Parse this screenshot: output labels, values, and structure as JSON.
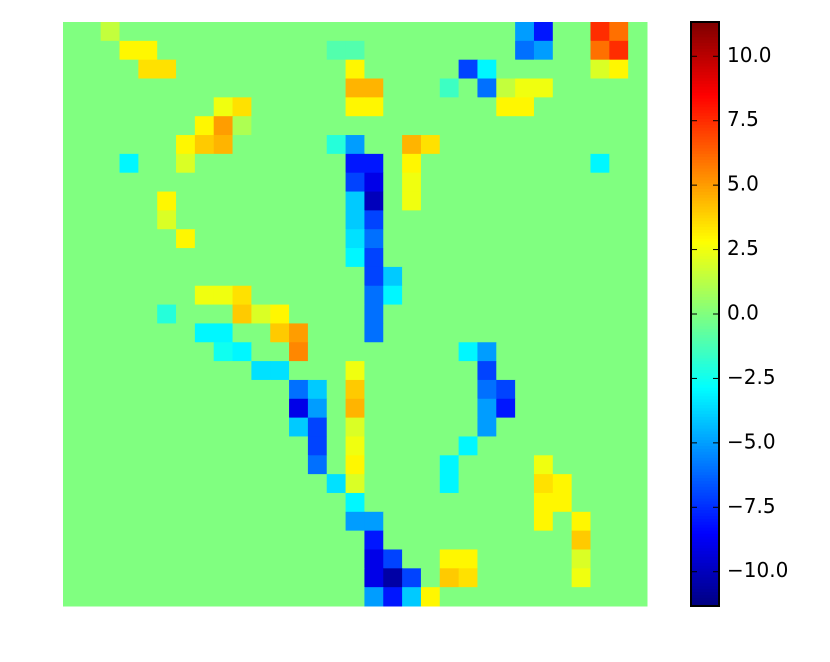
{
  "chart_data": {
    "type": "heatmap",
    "colormap": "jet",
    "clim": [
      -11.33,
      11.33
    ],
    "cticks": [
      {
        "value": -10,
        "label": "−10.0"
      },
      {
        "value": -7.5,
        "label": "−7.5"
      },
      {
        "value": -5,
        "label": "−5.0"
      },
      {
        "value": -2.5,
        "label": "−2.5"
      },
      {
        "value": 0,
        "label": "0.0"
      },
      {
        "value": 2.5,
        "label": "2.5"
      },
      {
        "value": 5,
        "label": "5.0"
      },
      {
        "value": 7.5,
        "label": "7.5"
      },
      {
        "value": 10,
        "label": "10.0"
      }
    ],
    "z": [
      [
        0,
        0,
        1.5,
        0,
        0,
        0,
        0,
        0,
        0,
        0,
        0,
        0,
        0,
        0,
        0,
        0,
        0,
        0,
        0,
        0,
        0,
        0,
        0,
        0,
        -5,
        -8,
        0,
        0,
        7.5,
        6,
        0
      ],
      [
        0,
        0,
        0,
        3,
        3,
        0,
        0,
        0,
        0,
        0,
        0,
        0,
        0,
        0,
        -1,
        -1,
        0,
        0,
        0,
        0,
        0,
        0,
        0,
        0,
        -6,
        -5,
        0,
        0,
        6,
        7.5,
        0
      ],
      [
        0,
        0,
        0,
        0,
        3.5,
        3.5,
        0,
        0,
        0,
        0,
        0,
        0,
        0,
        0,
        0,
        3,
        0,
        0,
        0,
        0,
        0,
        -7,
        -3,
        0,
        0,
        0,
        0,
        0,
        2,
        3,
        0
      ],
      [
        0,
        0,
        0,
        0,
        0,
        0,
        0,
        0,
        0,
        0,
        0,
        0,
        0,
        0,
        0,
        4.5,
        4.5,
        0,
        0,
        0,
        -1.5,
        0,
        -6,
        1.5,
        2.5,
        2.5,
        0,
        0,
        0,
        0,
        0
      ],
      [
        0,
        0,
        0,
        0,
        0,
        0,
        0,
        0,
        2.5,
        3.5,
        0,
        0,
        0,
        0,
        0,
        3,
        3,
        0,
        0,
        0,
        0,
        0,
        0,
        3,
        3,
        0,
        0,
        0,
        0,
        0,
        0
      ],
      [
        0,
        0,
        0,
        0,
        0,
        0,
        0,
        3,
        5,
        1,
        0,
        0,
        0,
        0,
        0,
        0,
        0,
        0,
        0,
        0,
        0,
        0,
        0,
        0,
        0,
        0,
        0,
        0,
        0,
        0,
        0
      ],
      [
        0,
        0,
        0,
        0,
        0,
        0,
        3,
        4,
        4.5,
        0,
        0,
        0,
        0,
        0,
        -2,
        -5,
        0,
        0,
        4.5,
        3.5,
        0,
        0,
        0,
        0,
        0,
        0,
        0,
        0,
        0,
        0,
        0
      ],
      [
        0,
        0,
        0,
        -3,
        0,
        0,
        2,
        0,
        0,
        0,
        0,
        0,
        0,
        0,
        0,
        -8,
        -8,
        0,
        3,
        0,
        0,
        0,
        0,
        0,
        0,
        0,
        0,
        0,
        -3,
        0,
        0
      ],
      [
        0,
        0,
        0,
        0,
        0,
        0,
        0,
        0,
        0,
        0,
        0,
        0,
        0,
        0,
        0,
        -7,
        -9,
        0,
        2.5,
        0,
        0,
        0,
        0,
        0,
        0,
        0,
        0,
        0,
        0,
        0,
        0
      ],
      [
        0,
        0,
        0,
        0,
        0,
        3,
        0,
        0,
        0,
        0,
        0,
        0,
        0,
        0,
        0,
        -4,
        -10,
        0,
        2.5,
        0,
        0,
        0,
        0,
        0,
        0,
        0,
        0,
        0,
        0,
        0,
        0
      ],
      [
        0,
        0,
        0,
        0,
        0,
        2,
        0,
        0,
        0,
        0,
        0,
        0,
        0,
        0,
        0,
        -4,
        -7,
        0,
        0,
        0,
        0,
        0,
        0,
        0,
        0,
        0,
        0,
        0,
        0,
        0,
        0
      ],
      [
        0,
        0,
        0,
        0,
        0,
        0,
        3,
        0,
        0,
        0,
        0,
        0,
        0,
        0,
        0,
        -3.5,
        -6,
        0,
        0,
        0,
        0,
        0,
        0,
        0,
        0,
        0,
        0,
        0,
        0,
        0,
        0
      ],
      [
        0,
        0,
        0,
        0,
        0,
        0,
        0,
        0,
        0,
        0,
        0,
        0,
        0,
        0,
        0,
        -3,
        -7,
        0,
        0,
        0,
        0,
        0,
        0,
        0,
        0,
        0,
        0,
        0,
        0,
        0,
        0
      ],
      [
        0,
        0,
        0,
        0,
        0,
        0,
        0,
        0,
        0,
        0,
        0,
        0,
        0,
        0,
        0,
        0,
        -7,
        -4,
        0,
        0,
        0,
        0,
        0,
        0,
        0,
        0,
        0,
        0,
        0,
        0,
        0
      ],
      [
        0,
        0,
        0,
        0,
        0,
        0,
        0,
        2.5,
        2.5,
        3.5,
        0,
        0,
        0,
        0,
        0,
        0,
        -6,
        -3,
        0,
        0,
        0,
        0,
        0,
        0,
        0,
        0,
        0,
        0,
        0,
        0,
        0
      ],
      [
        0,
        0,
        0,
        0,
        0,
        -2,
        0,
        0,
        0,
        4,
        2,
        3,
        0,
        0,
        0,
        0,
        -6,
        0,
        0,
        0,
        0,
        0,
        0,
        0,
        0,
        0,
        0,
        0,
        0,
        0,
        0
      ],
      [
        0,
        0,
        0,
        0,
        0,
        0,
        0,
        -3,
        -3,
        0,
        0,
        4,
        5,
        0,
        0,
        0,
        -6,
        0,
        0,
        0,
        0,
        0,
        0,
        0,
        0,
        0,
        0,
        0,
        0,
        0,
        0
      ],
      [
        0,
        0,
        0,
        0,
        0,
        0,
        0,
        0,
        -2.5,
        -3,
        0,
        0,
        5.5,
        0,
        0,
        0,
        0,
        0,
        0,
        0,
        0,
        -3,
        -5,
        0,
        0,
        0,
        0,
        0,
        0,
        0,
        0
      ],
      [
        0,
        0,
        0,
        0,
        0,
        0,
        0,
        0,
        0,
        0,
        -3.5,
        -3.5,
        0,
        0,
        0,
        2.5,
        0,
        0,
        0,
        0,
        0,
        0,
        -7,
        0,
        0,
        0,
        0,
        0,
        0,
        0,
        0
      ],
      [
        0,
        0,
        0,
        0,
        0,
        0,
        0,
        0,
        0,
        0,
        0,
        0,
        -6,
        -4,
        0,
        4,
        0,
        0,
        0,
        0,
        0,
        0,
        -6,
        -7,
        0,
        0,
        0,
        0,
        0,
        0,
        0
      ],
      [
        0,
        0,
        0,
        0,
        0,
        0,
        0,
        0,
        0,
        0,
        0,
        0,
        -9,
        -5,
        0,
        4.5,
        0,
        0,
        0,
        0,
        0,
        0,
        -5,
        -8,
        0,
        0,
        0,
        0,
        0,
        0,
        0
      ],
      [
        0,
        0,
        0,
        0,
        0,
        0,
        0,
        0,
        0,
        0,
        0,
        0,
        -4,
        -7,
        0,
        2,
        0,
        0,
        0,
        0,
        0,
        0,
        -5,
        0,
        0,
        0,
        0,
        0,
        0,
        0,
        0
      ],
      [
        0,
        0,
        0,
        0,
        0,
        0,
        0,
        0,
        0,
        0,
        0,
        0,
        0,
        -7,
        0,
        2.5,
        0,
        0,
        0,
        0,
        0,
        -3,
        0,
        0,
        0,
        0,
        0,
        0,
        0,
        0,
        0
      ],
      [
        0,
        0,
        0,
        0,
        0,
        0,
        0,
        0,
        0,
        0,
        0,
        0,
        0,
        -6,
        0,
        3,
        0,
        0,
        0,
        0,
        -3,
        0,
        0,
        0,
        0,
        2.5,
        0,
        0,
        0,
        0,
        0
      ],
      [
        0,
        0,
        0,
        0,
        0,
        0,
        0,
        0,
        0,
        0,
        0,
        0,
        0,
        0,
        -3.5,
        2,
        0,
        0,
        0,
        0,
        -3,
        0,
        0,
        0,
        0,
        3.5,
        3,
        0,
        0,
        0,
        0
      ],
      [
        0,
        0,
        0,
        0,
        0,
        0,
        0,
        0,
        0,
        0,
        0,
        0,
        0,
        0,
        0,
        -3,
        0,
        0,
        0,
        0,
        0,
        0,
        0,
        0,
        0,
        3,
        3,
        0,
        0,
        0,
        0
      ],
      [
        0,
        0,
        0,
        0,
        0,
        0,
        0,
        0,
        0,
        0,
        0,
        0,
        0,
        0,
        0,
        -5,
        -5,
        0,
        0,
        0,
        0,
        0,
        0,
        0,
        0,
        3,
        0,
        3,
        0,
        0,
        0
      ],
      [
        0,
        0,
        0,
        0,
        0,
        0,
        0,
        0,
        0,
        0,
        0,
        0,
        0,
        0,
        0,
        0,
        -8,
        0,
        0,
        0,
        0,
        0,
        0,
        0,
        0,
        0,
        0,
        4,
        0,
        0,
        0
      ],
      [
        0,
        0,
        0,
        0,
        0,
        0,
        0,
        0,
        0,
        0,
        0,
        0,
        0,
        0,
        0,
        0,
        -9,
        -7,
        0,
        0,
        3,
        3,
        0,
        0,
        0,
        0,
        0,
        2,
        0,
        0,
        0
      ],
      [
        0,
        0,
        0,
        0,
        0,
        0,
        0,
        0,
        0,
        0,
        0,
        0,
        0,
        0,
        0,
        0,
        -9,
        -10.5,
        -7,
        0,
        4,
        3.5,
        0,
        0,
        0,
        0,
        0,
        2.5,
        0,
        0,
        0
      ],
      [
        0,
        0,
        0,
        0,
        0,
        0,
        0,
        0,
        0,
        0,
        0,
        0,
        0,
        0,
        0,
        0,
        -5,
        -8,
        -4,
        3,
        0,
        0,
        0,
        0,
        0,
        0,
        0,
        0,
        0,
        0,
        0
      ]
    ]
  }
}
